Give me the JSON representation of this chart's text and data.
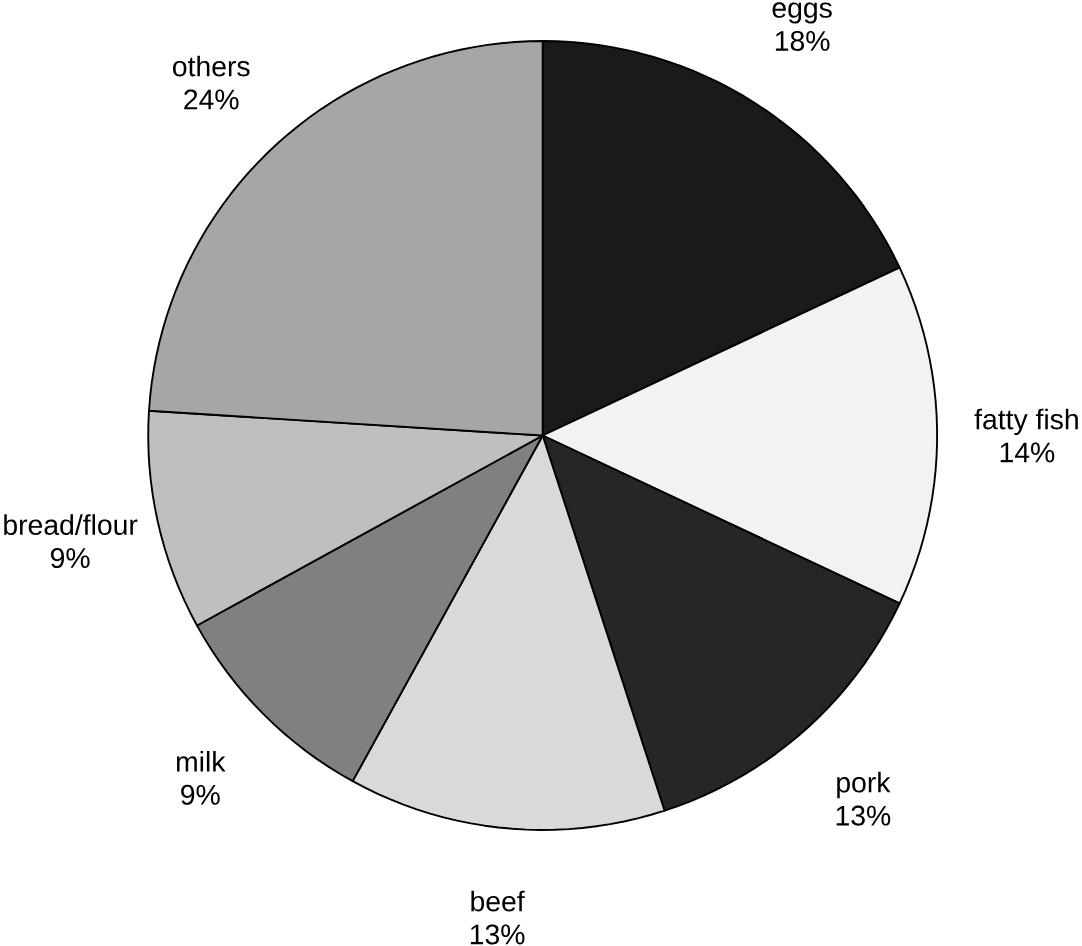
{
  "chart_data": {
    "type": "pie",
    "categories": [
      "eggs",
      "fatty fish",
      "pork",
      "beef",
      "milk",
      "bread/flour",
      "others"
    ],
    "values": [
      18,
      14,
      13,
      13,
      9,
      9,
      24
    ],
    "value_labels": [
      "18%",
      "14%",
      "13%",
      "13%",
      "9%",
      "9%",
      "24%"
    ],
    "colors": [
      "#1a1a1a",
      "#f2f2f2",
      "#262626",
      "#d9d9d9",
      "#808080",
      "#bfbfbf",
      "#a6a6a6"
    ]
  }
}
